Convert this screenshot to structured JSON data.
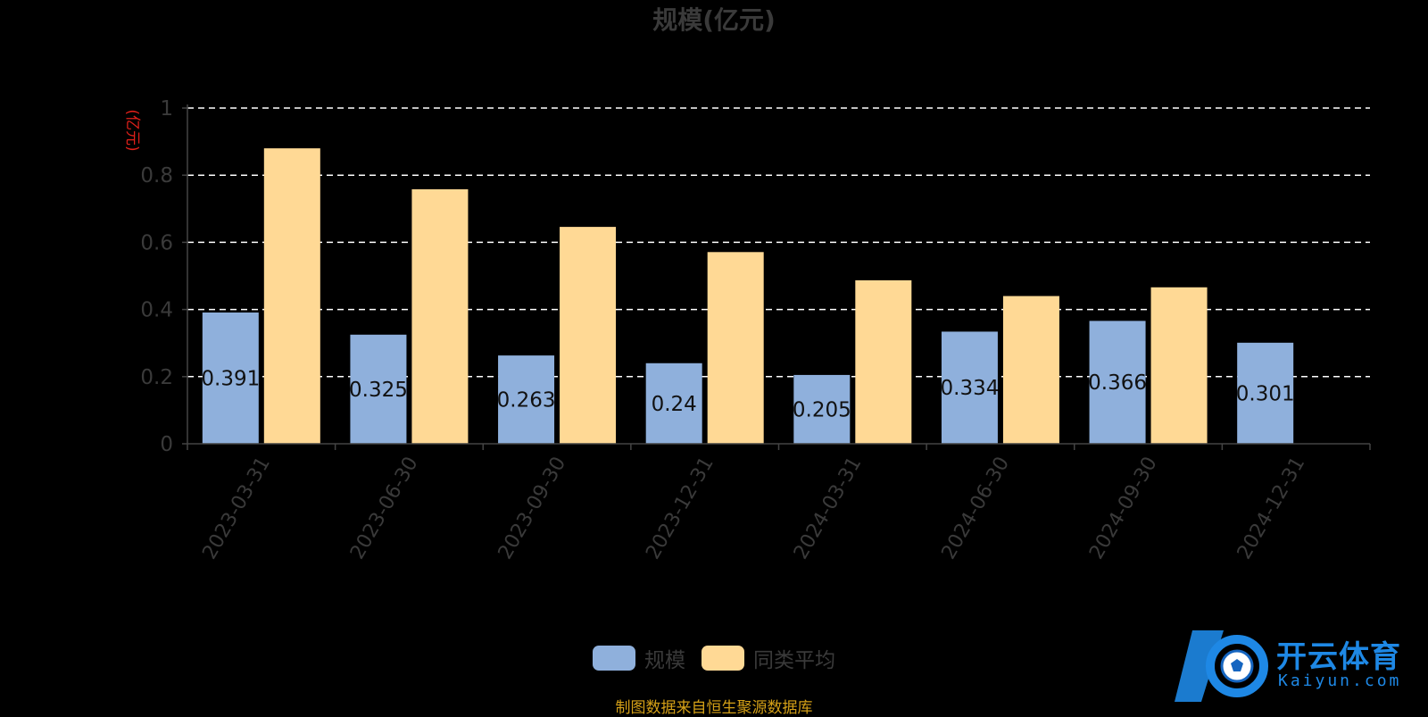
{
  "chart_data": {
    "type": "bar",
    "title": "规模(亿元)",
    "ylabel": "(亿元)",
    "ylim": [
      0,
      1
    ],
    "yticks": [
      "0",
      "0.2",
      "0.4",
      "0.6",
      "0.8",
      "1"
    ],
    "grid": true,
    "categories": [
      "2023-03-31",
      "2023-06-30",
      "2023-09-30",
      "2023-12-31",
      "2024-03-31",
      "2024-06-30",
      "2024-09-30",
      "2024-12-31"
    ],
    "series": [
      {
        "name": "规模",
        "color": "#8fb0dc",
        "values": [
          0.391,
          0.325,
          0.263,
          0.24,
          0.205,
          0.334,
          0.366,
          0.301
        ],
        "labels": [
          "0.391",
          "0.325",
          "0.263",
          "0.24",
          "0.205",
          "0.334",
          "0.366",
          "0.301"
        ]
      },
      {
        "name": "同类平均",
        "color": "#ffd995",
        "values": [
          0.88,
          0.758,
          0.646,
          0.571,
          0.487,
          0.44,
          0.466,
          null
        ]
      }
    ],
    "legend_position": "bottom-center"
  },
  "source_note": "制图数据来自恒生聚源数据库",
  "watermark": {
    "text": "开云体育",
    "sub": "Kaiyun.com"
  }
}
